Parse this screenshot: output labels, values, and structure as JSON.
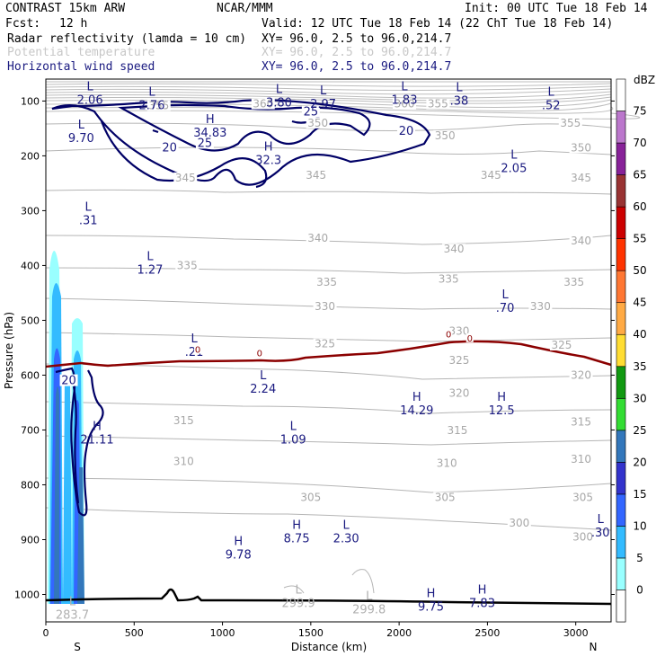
{
  "header": {
    "model": "CONTRAST 15km ARW",
    "center": "NCAR/MMM",
    "init": "Init: 00 UTC Tue 18 Feb 14",
    "fcst_label": "Fcst:",
    "fcst_value": "12 h",
    "valid": "Valid: 12 UTC Tue 18 Feb 14 (22 ChT Tue 18 Feb 14)",
    "fields": [
      {
        "name": "Radar reflectivity (lamda = 10 cm)",
        "xy": "XY=  96.0,  2.5 to  96.0,214.7",
        "style": "black"
      },
      {
        "name": "Potential temperature",
        "xy": "XY=  96.0,  2.5 to  96.0,214.7",
        "style": "grey"
      },
      {
        "name": "Horizontal wind speed",
        "xy": "XY=  96.0,  2.5 to  96.0,214.7",
        "style": "blue"
      }
    ]
  },
  "chart_data": {
    "type": "cross-section",
    "xlabel": "Distance (km)",
    "ylabel": "Pressure (hPa)",
    "xlim": [
      0,
      3200
    ],
    "ylim": [
      1050,
      60
    ],
    "x_ticks": [
      0,
      500,
      1000,
      1500,
      2000,
      2500,
      3000
    ],
    "y_ticks": [
      100,
      200,
      300,
      400,
      500,
      600,
      700,
      800,
      900,
      1000
    ],
    "x_end_labels": {
      "left": "S",
      "right": "N"
    },
    "colorbar": {
      "unit": "dBZ",
      "levels": [
        0,
        5,
        10,
        15,
        20,
        25,
        30,
        35,
        40,
        45,
        50,
        55,
        60,
        65,
        70,
        75
      ],
      "colors": [
        "#ffffff",
        "#99ffff",
        "#33bbff",
        "#3366ff",
        "#3333cc",
        "#3377bb",
        "#33dd33",
        "#119911",
        "#ffdd33",
        "#ffaa44",
        "#ff7733",
        "#ff3300",
        "#cc0000",
        "#993333",
        "#882299",
        "#bb77cc"
      ]
    },
    "theta_labels": [
      {
        "label": "360",
        "x": 1230,
        "p": 110
      },
      {
        "label": "355",
        "x": 640,
        "p": 113
      },
      {
        "label": "355",
        "x": 2220,
        "p": 110
      },
      {
        "label": "360",
        "x": 2030,
        "p": 110
      },
      {
        "label": "350",
        "x": 1540,
        "p": 145
      },
      {
        "label": "350",
        "x": 2260,
        "p": 168
      },
      {
        "label": "350",
        "x": 3030,
        "p": 190
      },
      {
        "label": "355",
        "x": 2970,
        "p": 145
      },
      {
        "label": "345",
        "x": 790,
        "p": 245
      },
      {
        "label": "345",
        "x": 1530,
        "p": 240
      },
      {
        "label": "345",
        "x": 2520,
        "p": 240
      },
      {
        "label": "345",
        "x": 3030,
        "p": 245
      },
      {
        "label": "340",
        "x": 1540,
        "p": 355
      },
      {
        "label": "340",
        "x": 2310,
        "p": 375
      },
      {
        "label": "340",
        "x": 3030,
        "p": 360
      },
      {
        "label": "335",
        "x": 800,
        "p": 405
      },
      {
        "label": "335",
        "x": 1590,
        "p": 435
      },
      {
        "label": "335",
        "x": 2280,
        "p": 430
      },
      {
        "label": "335",
        "x": 2990,
        "p": 435
      },
      {
        "label": "330",
        "x": 1580,
        "p": 480
      },
      {
        "label": "330",
        "x": 2340,
        "p": 525
      },
      {
        "label": "330",
        "x": 2800,
        "p": 480
      },
      {
        "label": "325",
        "x": 1580,
        "p": 548
      },
      {
        "label": "325",
        "x": 2340,
        "p": 578
      },
      {
        "label": "325",
        "x": 2920,
        "p": 550
      },
      {
        "label": "320",
        "x": 2340,
        "p": 638
      },
      {
        "label": "320",
        "x": 3030,
        "p": 605
      },
      {
        "label": "315",
        "x": 780,
        "p": 688
      },
      {
        "label": "315",
        "x": 2330,
        "p": 706
      },
      {
        "label": "315",
        "x": 3030,
        "p": 690
      },
      {
        "label": "310",
        "x": 780,
        "p": 762
      },
      {
        "label": "310",
        "x": 2270,
        "p": 766
      },
      {
        "label": "310",
        "x": 3030,
        "p": 758
      },
      {
        "label": "305",
        "x": 1500,
        "p": 828
      },
      {
        "label": "305",
        "x": 2260,
        "p": 828
      },
      {
        "label": "305",
        "x": 3040,
        "p": 828
      },
      {
        "label": "300",
        "x": 2680,
        "p": 875
      },
      {
        "label": "300",
        "x": 3040,
        "p": 900
      }
    ],
    "wind_contour_labels": [
      {
        "label": "20",
        "x": 700,
        "p": 190
      },
      {
        "label": "25",
        "x": 900,
        "p": 182
      },
      {
        "label": "25",
        "x": 1500,
        "p": 125
      },
      {
        "label": "20",
        "x": 2040,
        "p": 160
      },
      {
        "label": "20",
        "x": 130,
        "p": 615
      }
    ],
    "extrema": [
      {
        "type": "L",
        "value": "2.06",
        "x": 250,
        "p": 85
      },
      {
        "type": "L",
        "value": "2.76",
        "x": 600,
        "p": 95
      },
      {
        "type": "L",
        "value": "3.80",
        "x": 1320,
        "p": 90
      },
      {
        "type": "L",
        "value": "2.97",
        "x": 1570,
        "p": 93
      },
      {
        "type": "L",
        "value": "1.83",
        "x": 2030,
        "p": 85
      },
      {
        "type": "L",
        "value": ".38",
        "x": 2340,
        "p": 87
      },
      {
        "type": "L",
        "value": ".52",
        "x": 2860,
        "p": 95
      },
      {
        "type": "L",
        "value": "9.70",
        "x": 200,
        "p": 155
      },
      {
        "type": "H",
        "value": "34.83",
        "x": 930,
        "p": 145
      },
      {
        "type": "H",
        "value": "32.3",
        "x": 1260,
        "p": 195
      },
      {
        "type": "L",
        "value": "2.05",
        "x": 2650,
        "p": 210
      },
      {
        "type": "L",
        "value": ".31",
        "x": 240,
        "p": 305
      },
      {
        "type": "L",
        "value": "1.27",
        "x": 590,
        "p": 395
      },
      {
        "type": "L",
        "value": ".70",
        "x": 2600,
        "p": 465
      },
      {
        "type": "L",
        "value": ".21",
        "x": 840,
        "p": 545
      },
      {
        "type": "L",
        "value": "2.24",
        "x": 1230,
        "p": 612
      },
      {
        "type": "H",
        "value": "14.29",
        "x": 2100,
        "p": 652
      },
      {
        "type": "H",
        "value": "12.5",
        "x": 2580,
        "p": 652
      },
      {
        "type": "H",
        "value": "21.11",
        "x": 290,
        "p": 705
      },
      {
        "type": "L",
        "value": "1.09",
        "x": 1400,
        "p": 705
      },
      {
        "type": "H",
        "value": "8.75",
        "x": 1420,
        "p": 885
      },
      {
        "type": "L",
        "value": "2.30",
        "x": 1700,
        "p": 885
      },
      {
        "type": "H",
        "value": "9.78",
        "x": 1090,
        "p": 915
      },
      {
        "type": "L",
        "value": "299.9",
        "x": 1430,
        "p": 1003,
        "style": "grey"
      },
      {
        "type": "L",
        "value": "299.8",
        "x": 1830,
        "p": 1015,
        "style": "grey"
      },
      {
        "type": "L",
        "value": "283.7",
        "x": 150,
        "p": 1025,
        "style": "grey"
      },
      {
        "type": "H",
        "value": "9.75",
        "x": 2180,
        "p": 1010
      },
      {
        "type": "H",
        "value": "7.83",
        "x": 2470,
        "p": 1003
      },
      {
        "type": "L",
        "value": ".30",
        "x": 3140,
        "p": 875
      }
    ],
    "freezing_level_label": "0"
  }
}
